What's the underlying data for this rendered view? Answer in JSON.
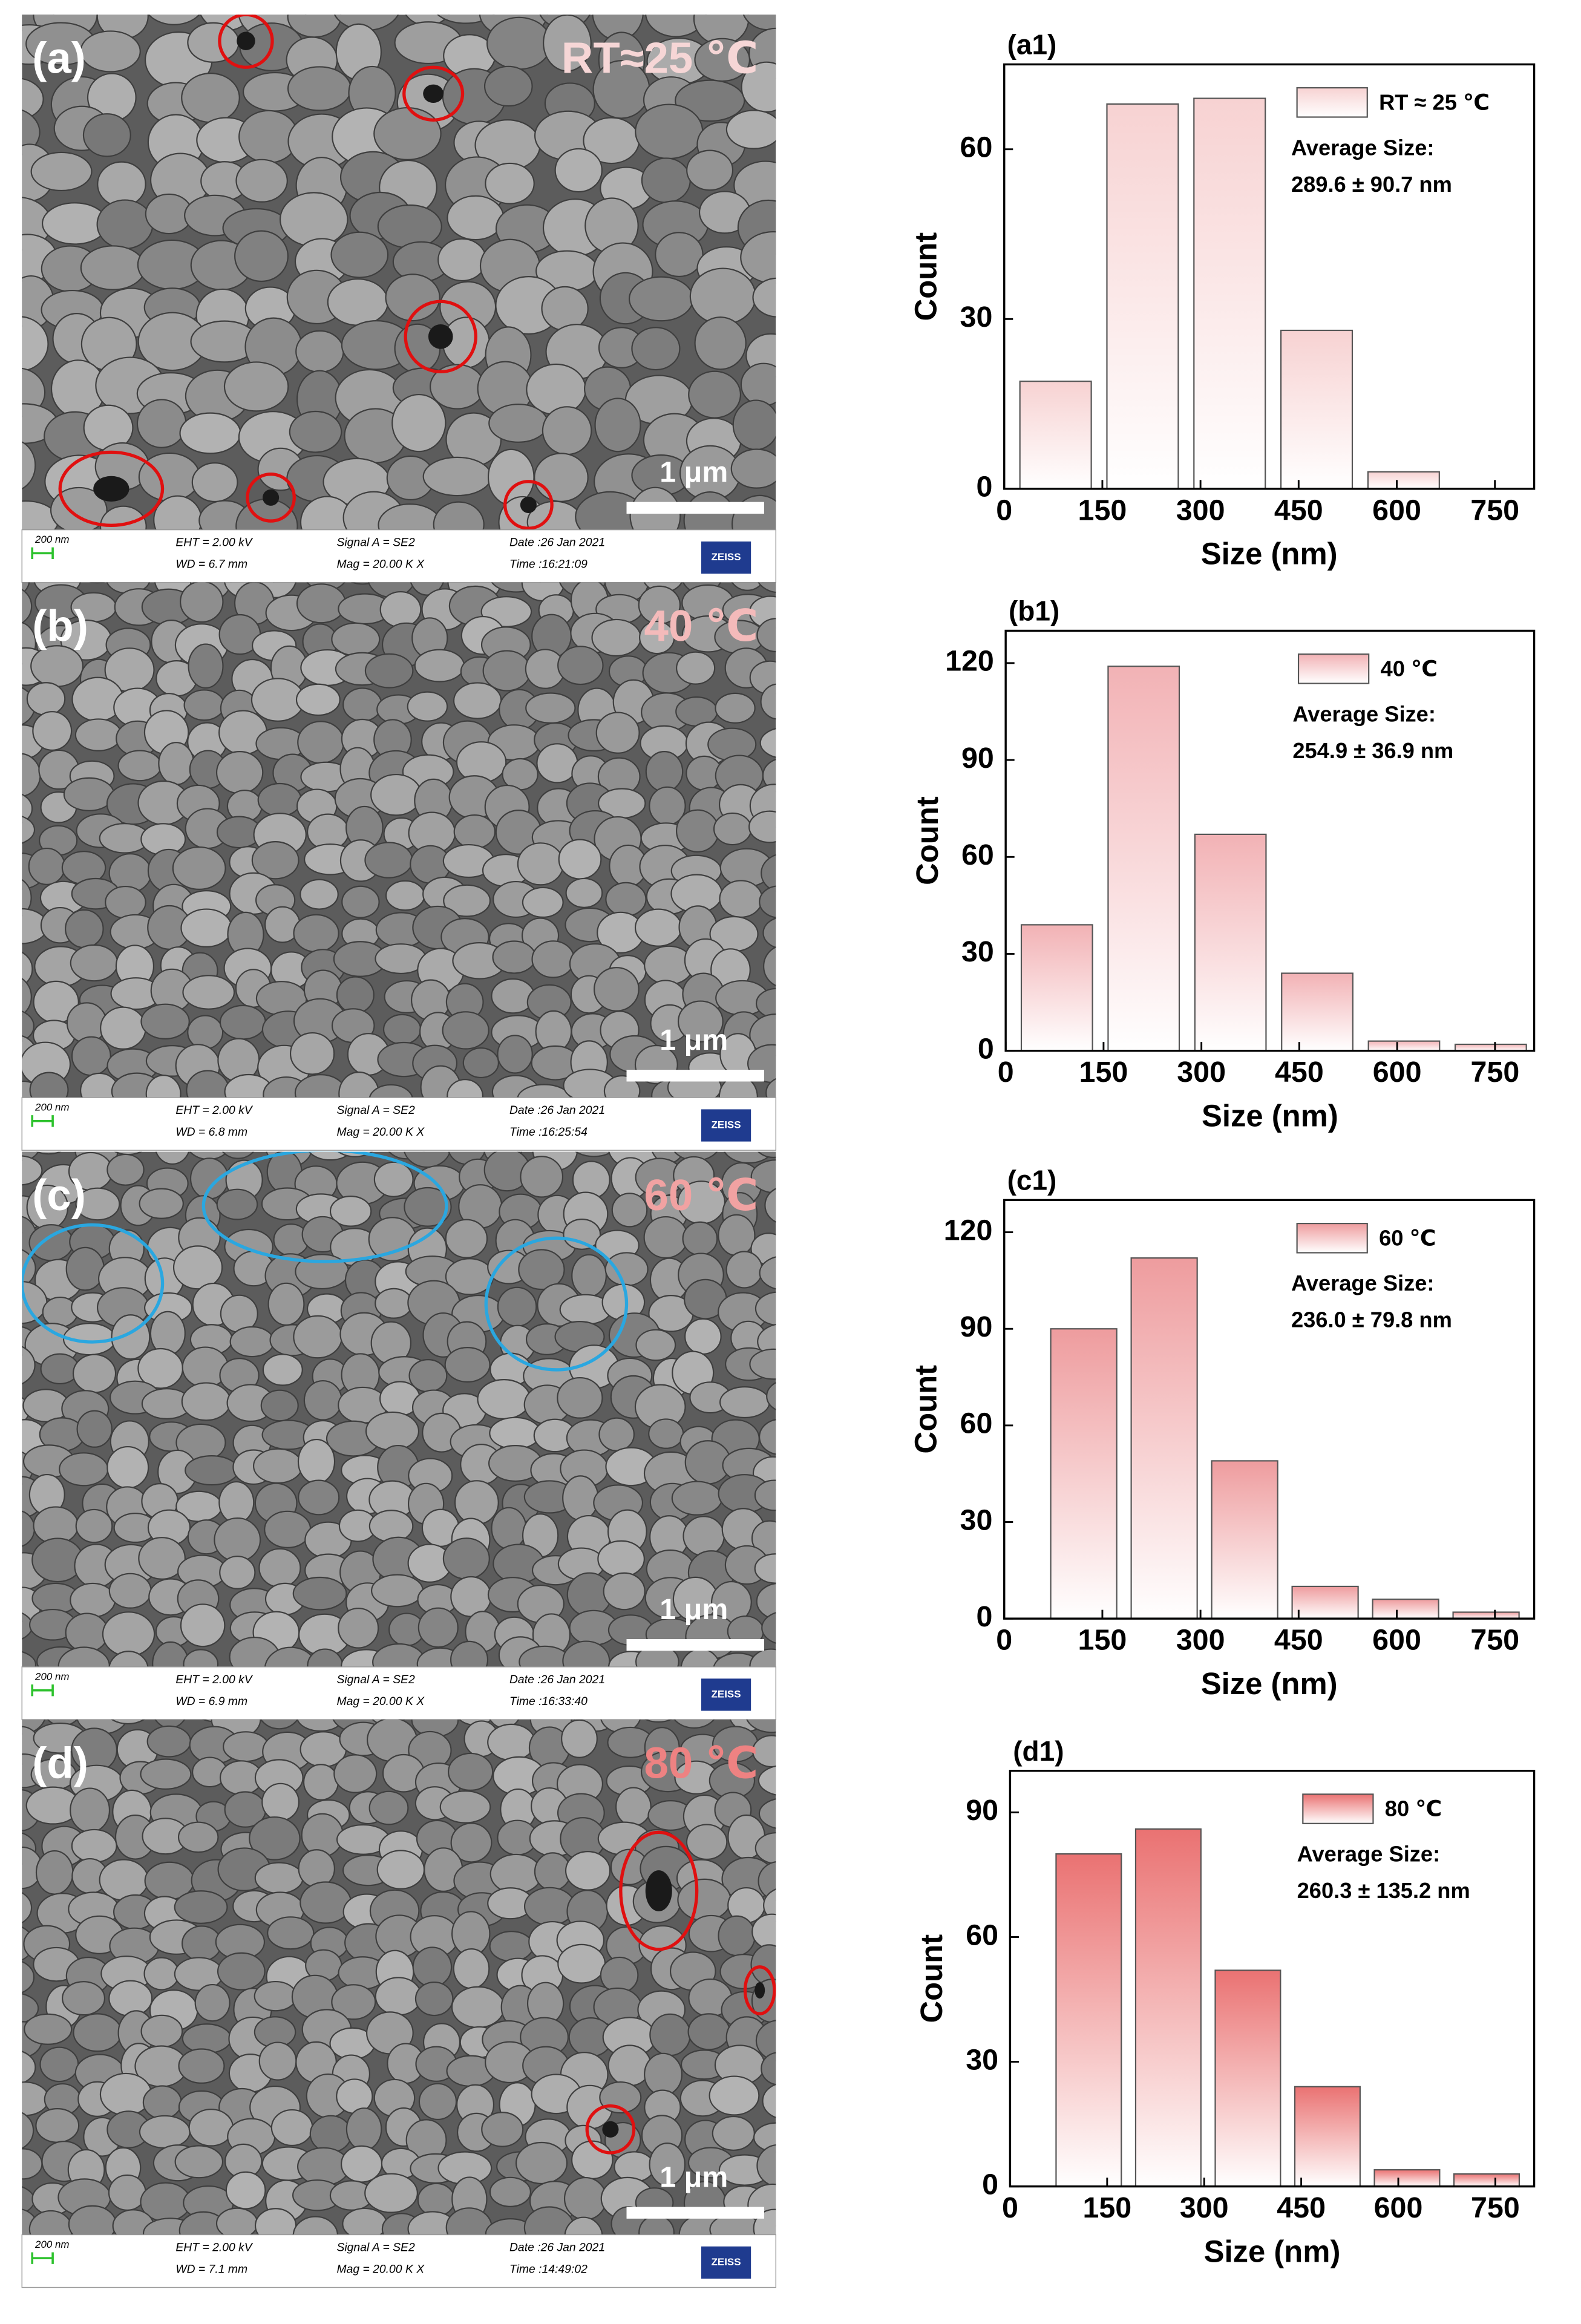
{
  "images": [
    {
      "label": "(a)",
      "temperature": "RT≈25 ℃",
      "color": "#f6d6d6",
      "scale_bar": "1 μm",
      "info": {
        "scale": "200 nm",
        "eht": "EHT =  2.00 kV",
        "wd": "WD =  6.7 mm",
        "signal": "Signal A = SE2",
        "mag": "Mag =  20.00 K X",
        "date": "Date :26 Jan 2021",
        "time": "Time :16:21:09",
        "logo": "ZEISS"
      }
    },
    {
      "label": "(b)",
      "temperature": "40 ℃",
      "color": "#f4baba",
      "scale_bar": "1 μm",
      "info": {
        "scale": "200 nm",
        "eht": "EHT =  2.00 kV",
        "wd": "WD =  6.8 mm",
        "signal": "Signal A = SE2",
        "mag": "Mag =  20.00 K X",
        "date": "Date :26 Jan 2021",
        "time": "Time :16:25:54",
        "logo": "ZEISS"
      }
    },
    {
      "label": "(c)",
      "temperature": "60 ℃",
      "color": "#f1a2a2",
      "scale_bar": "1 μm",
      "info": {
        "scale": "200 nm",
        "eht": "EHT =  2.00 kV",
        "wd": "WD =  6.9 mm",
        "signal": "Signal A = SE2",
        "mag": "Mag =  20.00 K X",
        "date": "Date :26 Jan 2021",
        "time": "Time :16:33:40",
        "logo": "ZEISS"
      }
    },
    {
      "label": "(d)",
      "temperature": "80 ℃",
      "color": "#ee8282",
      "scale_bar": "1 μm",
      "info": {
        "scale": "200 nm",
        "eht": "EHT =  2.00 kV",
        "wd": "WD =  7.1 mm",
        "signal": "Signal A = SE2",
        "mag": "Mag =  20.00 K X",
        "date": "Date :26 Jan 2021",
        "time": "Time :14:49:02",
        "logo": "ZEISS"
      }
    }
  ],
  "chart_data": [
    {
      "type": "histogram",
      "title": "(a1)",
      "x_label": "Size (nm)",
      "y_label": "Count",
      "bins": [
        12,
        145,
        278,
        411,
        544,
        677
      ],
      "series": [
        {
          "name": "RT ≈ 25 ℃",
          "color": "#f7d2d2",
          "values": [
            19,
            68,
            69,
            28,
            3
          ]
        }
      ],
      "annotations": [
        "Average Size:",
        "289.6 ± 90.7 nm"
      ],
      "xlim": [
        0,
        810
      ],
      "xticks": [
        0,
        150,
        300,
        450,
        600,
        750
      ],
      "ylim": [
        0,
        75
      ],
      "yticks": [
        0,
        30,
        60
      ]
    },
    {
      "type": "histogram",
      "title": "(b1)",
      "x_label": "Size (nm)",
      "y_label": "Count",
      "bins": [
        12,
        145,
        278,
        411,
        544,
        677,
        810
      ],
      "series": [
        {
          "name": "40 ℃",
          "color": "#f2b2b5",
          "values": [
            39,
            119,
            67,
            24,
            3,
            2
          ]
        }
      ],
      "annotations": [
        "Average Size:",
        "254.9 ± 36.9 nm"
      ],
      "xlim": [
        0,
        810
      ],
      "xticks": [
        0,
        150,
        300,
        450,
        600,
        750
      ],
      "ylim": [
        0,
        130
      ],
      "yticks": [
        0,
        30,
        60,
        90,
        120
      ]
    },
    {
      "type": "histogram",
      "title": "(c1)",
      "x_label": "Size (nm)",
      "y_label": "Count",
      "bins": [
        60,
        183,
        306,
        429,
        552,
        675,
        798
      ],
      "series": [
        {
          "name": "60 ℃",
          "color": "#ee9c9e",
          "values": [
            90,
            112,
            49,
            10,
            6,
            2
          ]
        }
      ],
      "annotations": [
        "Average Size:",
        "236.0 ± 79.8 nm"
      ],
      "xlim": [
        0,
        810
      ],
      "xticks": [
        0,
        150,
        300,
        450,
        600,
        750
      ],
      "ylim": [
        0,
        130
      ],
      "yticks": [
        0,
        30,
        60,
        90,
        120
      ]
    },
    {
      "type": "histogram",
      "title": "(d1)",
      "x_label": "Size (nm)",
      "y_label": "Count",
      "bins": [
        60,
        183,
        306,
        429,
        552,
        675,
        798
      ],
      "series": [
        {
          "name": "80 ℃",
          "color": "#ea7272",
          "values": [
            80,
            86,
            52,
            24,
            4,
            3
          ]
        }
      ],
      "annotations": [
        "Average Size:",
        "260.3 ± 135.2 nm"
      ],
      "xlim": [
        0,
        810
      ],
      "xticks": [
        0,
        150,
        300,
        450,
        600,
        750
      ],
      "ylim": [
        0,
        100
      ],
      "yticks": [
        0,
        30,
        60,
        90
      ]
    }
  ]
}
